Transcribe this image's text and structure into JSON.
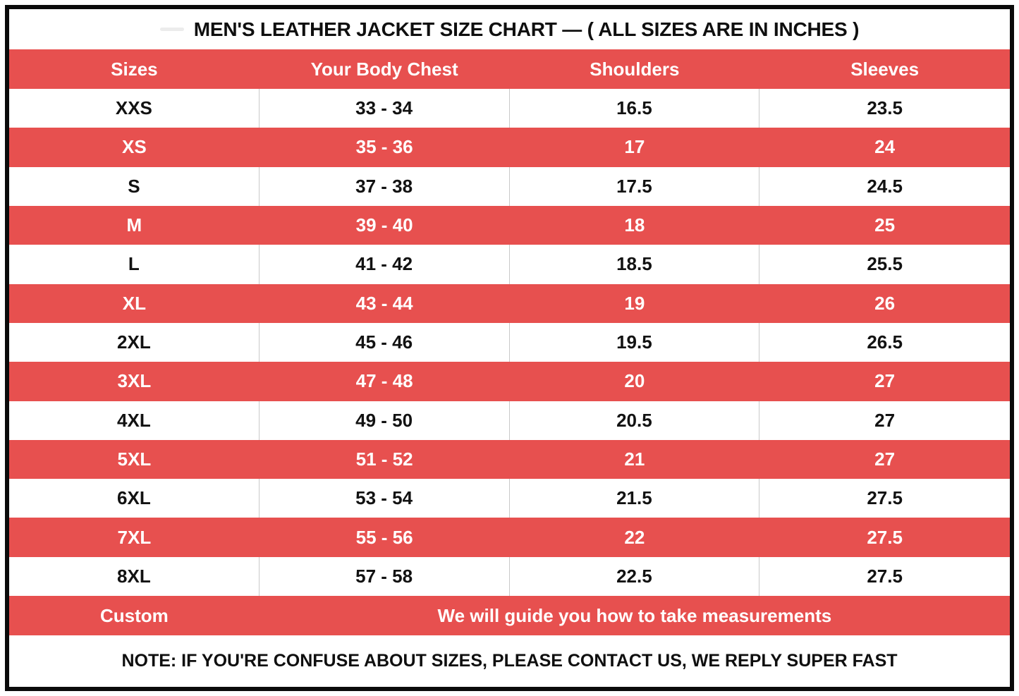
{
  "title": "MEN'S LEATHER JACKET SIZE CHART — ( ALL SIZES ARE IN INCHES )",
  "colors": {
    "accent_red": "#E7504F",
    "border_black": "#0B0B0B",
    "divider_gray": "#C9C9C9",
    "text_dark": "#121212",
    "text_light": "#FFFFFF"
  },
  "chart_data": {
    "type": "table",
    "title": "MEN'S LEATHER JACKET SIZE CHART — ( ALL SIZES ARE IN INCHES )",
    "units": "inches",
    "columns": [
      "Sizes",
      "Your Body Chest",
      "Shoulders",
      "Sleeves"
    ],
    "rows": [
      [
        "XXS",
        "33 - 34",
        "16.5",
        "23.5"
      ],
      [
        "XS",
        "35 - 36",
        "17",
        "24"
      ],
      [
        "S",
        "37 - 38",
        "17.5",
        "24.5"
      ],
      [
        "M",
        "39 - 40",
        "18",
        "25"
      ],
      [
        "L",
        "41 - 42",
        "18.5",
        "25.5"
      ],
      [
        "XL",
        "43 - 44",
        "19",
        "26"
      ],
      [
        "2XL",
        "45 - 46",
        "19.5",
        "26.5"
      ],
      [
        "3XL",
        "47 - 48",
        "20",
        "27"
      ],
      [
        "4XL",
        "49 - 50",
        "20.5",
        "27"
      ],
      [
        "5XL",
        "51 - 52",
        "21",
        "27"
      ],
      [
        "6XL",
        "53 - 54",
        "21.5",
        "27.5"
      ],
      [
        "7XL",
        "55 - 56",
        "22",
        "27.5"
      ],
      [
        "8XL",
        "57 - 58",
        "22.5",
        "27.5"
      ]
    ],
    "row_striping": "alternating white and red, starting white at XXS",
    "custom_row": {
      "label": "Custom",
      "message": "We will guide you how to take measurements"
    },
    "note": "NOTE: IF YOU'RE CONFUSE ABOUT SIZES, PLEASE CONTACT US, WE REPLY SUPER FAST"
  }
}
